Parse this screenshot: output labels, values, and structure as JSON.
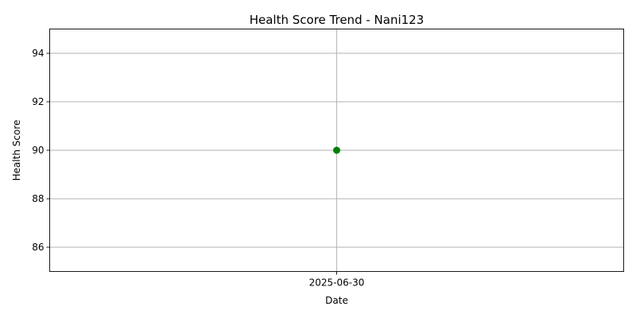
{
  "chart_data": {
    "type": "line",
    "title": "Health Score Trend - Nani123",
    "xlabel": "Date",
    "ylabel": "Health Score",
    "categories": [
      "2025-06-30"
    ],
    "series": [
      {
        "values": [
          90
        ],
        "color": "#008000",
        "marker": "circle"
      }
    ],
    "ylim": [
      85,
      95
    ],
    "yticks": [
      86,
      88,
      90,
      92,
      94
    ],
    "grid": true
  }
}
